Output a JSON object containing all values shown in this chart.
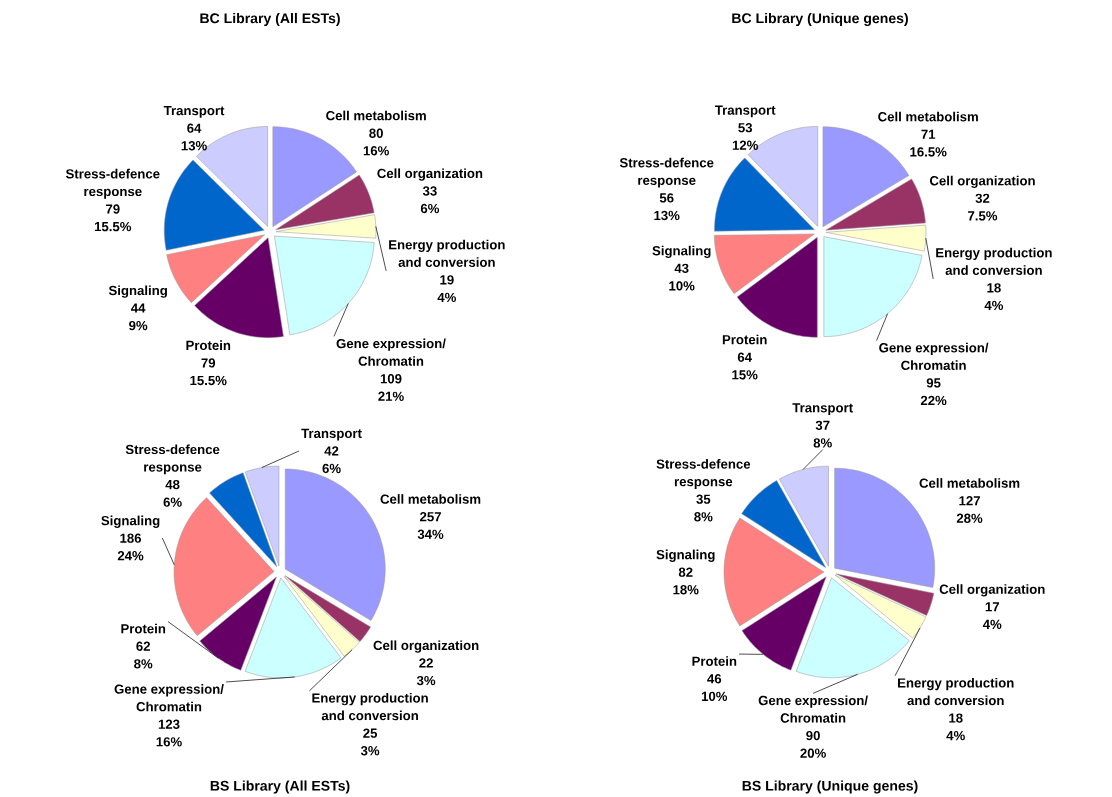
{
  "chart_data": [
    {
      "type": "pie",
      "title": "BC Library (All ESTs)",
      "categories": [
        "Cell metabolism",
        "Cell organization",
        "Energy production and conversion",
        "Gene expression/ Chromatin",
        "Protein",
        "Signaling",
        "Stress-defence response",
        "Transport"
      ],
      "values": [
        80,
        33,
        19,
        109,
        79,
        44,
        79,
        64
      ],
      "annotations": [
        "16%",
        "6%",
        "4%",
        "21%",
        "15.5%",
        "9%",
        "15.5%",
        "13%"
      ],
      "data_labels": true,
      "colors": [
        "#9999ff",
        "#993366",
        "#ffffcc",
        "#ccffff",
        "#660066",
        "#ff8080",
        "#0066cc",
        "#ccccff"
      ]
    },
    {
      "type": "pie",
      "title": "BC Library (Unique genes)",
      "categories": [
        "Cell metabolism",
        "Cell organization",
        "Energy production and conversion",
        "Gene expression/ Chromatin",
        "Protein",
        "Signaling",
        "Stress-defence response",
        "Transport"
      ],
      "values": [
        71,
        32,
        18,
        95,
        64,
        43,
        56,
        53
      ],
      "annotations": [
        "16.5%",
        "7.5%",
        "4%",
        "22%",
        "15%",
        "10%",
        "13%",
        "12%"
      ],
      "data_labels": true,
      "colors": [
        "#9999ff",
        "#993366",
        "#ffffcc",
        "#ccffff",
        "#660066",
        "#ff8080",
        "#0066cc",
        "#ccccff"
      ]
    },
    {
      "type": "pie",
      "title": "BS Library (All ESTs)",
      "categories": [
        "Cell metabolism",
        "Cell organization",
        "Energy production and conversion",
        "Gene expression/ Chromatin",
        "Protein",
        "Signaling",
        "Stress-defence response",
        "Transport"
      ],
      "values": [
        257,
        22,
        25,
        123,
        62,
        186,
        48,
        42
      ],
      "annotations": [
        "34%",
        "3%",
        "3%",
        "16%",
        "8%",
        "24%",
        "6%",
        "6%"
      ],
      "data_labels": true,
      "colors": [
        "#9999ff",
        "#993366",
        "#ffffcc",
        "#ccffff",
        "#660066",
        "#ff8080",
        "#0066cc",
        "#ccccff"
      ]
    },
    {
      "type": "pie",
      "title": "BS Library (Unique genes)",
      "categories": [
        "Cell metabolism",
        "Cell organization",
        "Energy production and conversion",
        "Gene expression/ Chromatin",
        "Protein",
        "Signaling",
        "Stress-defence response",
        "Transport"
      ],
      "values": [
        127,
        17,
        18,
        90,
        46,
        82,
        35,
        37
      ],
      "annotations": [
        "28%",
        "4%",
        "4%",
        "20%",
        "10%",
        "18%",
        "8%",
        "8%"
      ],
      "data_labels": true,
      "colors": [
        "#9999ff",
        "#993366",
        "#ffffcc",
        "#ccffff",
        "#660066",
        "#ff8080",
        "#0066cc",
        "#ccccff"
      ]
    }
  ]
}
